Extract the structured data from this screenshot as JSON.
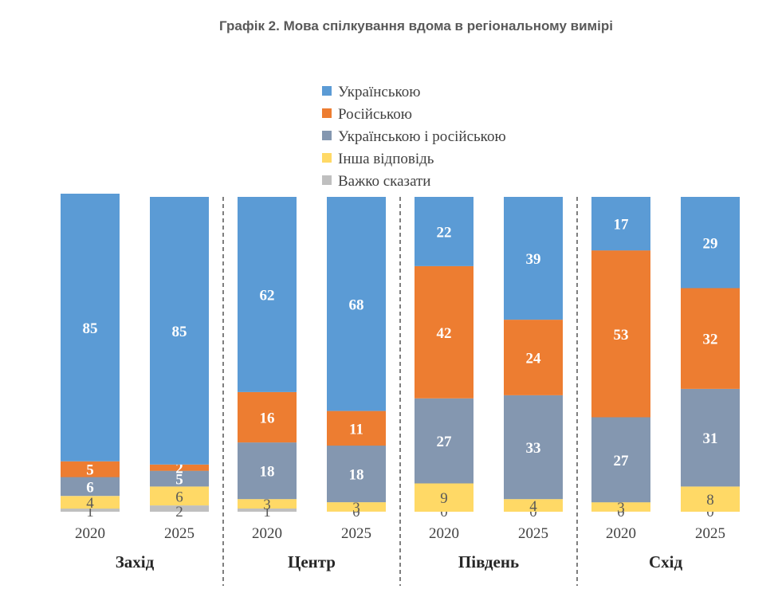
{
  "chart_data": {
    "type": "bar",
    "stacked": true,
    "normalized_to": 100,
    "title": "Графік 2. Мова спілкування вдома в регіональному вимірі",
    "legend_position": "top",
    "groups": [
      {
        "name": "Захід",
        "bars": [
          {
            "year": "2020",
            "values": [
              85,
              5,
              6,
              4,
              1
            ]
          },
          {
            "year": "2025",
            "values": [
              85,
              2,
              5,
              6,
              2
            ]
          }
        ]
      },
      {
        "name": "Центр",
        "bars": [
          {
            "year": "2020",
            "values": [
              62,
              16,
              18,
              3,
              1
            ]
          },
          {
            "year": "2025",
            "values": [
              68,
              11,
              18,
              3,
              0
            ]
          }
        ]
      },
      {
        "name": "Південь",
        "bars": [
          {
            "year": "2020",
            "values": [
              22,
              42,
              27,
              9,
              0
            ]
          },
          {
            "year": "2025",
            "values": [
              39,
              24,
              33,
              4,
              0
            ]
          }
        ]
      },
      {
        "name": "Схід",
        "bars": [
          {
            "year": "2020",
            "values": [
              17,
              53,
              27,
              3,
              0
            ]
          },
          {
            "year": "2025",
            "values": [
              29,
              32,
              31,
              8,
              0
            ]
          }
        ]
      }
    ],
    "series": [
      {
        "name": "Українською",
        "color": "#5b9bd5"
      },
      {
        "name": "Російською",
        "color": "#ed7d31"
      },
      {
        "name": "Українською і російською",
        "color": "#8497b0"
      },
      {
        "name": "Інша відповідь",
        "color": "#ffd966"
      },
      {
        "name": "Важко сказати",
        "color": "#bfbfbf"
      }
    ]
  }
}
